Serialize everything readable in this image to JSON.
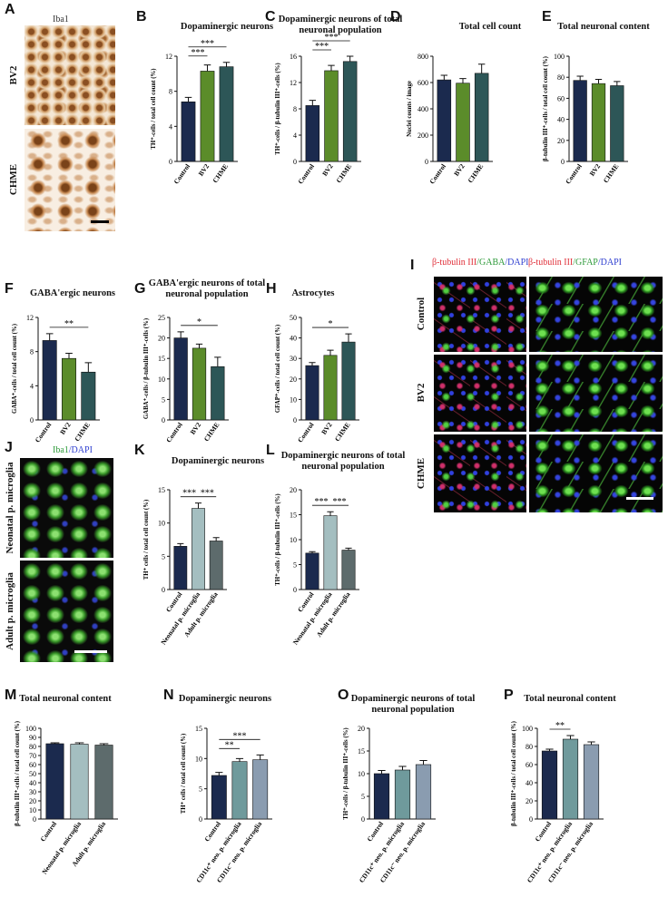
{
  "image_panels": [
    {
      "panel": "A",
      "header": [
        {
          "text": "Iba1",
          "color": "#333333"
        }
      ],
      "rows": [
        "BV2",
        "CHME"
      ]
    },
    {
      "panel": "I",
      "headers": [
        [
          {
            "text": "β-tubulin III",
            "color": "#e0303a"
          },
          {
            "text": "/GABA",
            "color": "#2e9a3a"
          },
          {
            "text": "/DAPI",
            "color": "#3040d0"
          }
        ],
        [
          {
            "text": "β-tubulin III",
            "color": "#e0303a"
          },
          {
            "text": "/GFAP",
            "color": "#2e9a3a"
          },
          {
            "text": "/DAPI",
            "color": "#3040d0"
          }
        ]
      ],
      "rows": [
        "Control",
        "BV2",
        "CHME"
      ]
    },
    {
      "panel": "J",
      "header": [
        {
          "text": "Iba1",
          "color": "#2e9a3a"
        },
        {
          "text": "/DAPI",
          "color": "#3040d0"
        }
      ],
      "rows": [
        "Neonatal p. microglia",
        "Adult p. microglia"
      ]
    }
  ],
  "chart_data": [
    {
      "type": "bar",
      "panel": "B",
      "title": "Dopaminergic neurons",
      "y_label": "TH⁺-cells / total cell count (%)",
      "categories": [
        "Control",
        "BV2",
        "CHME"
      ],
      "values": [
        6.8,
        10.3,
        10.8
      ],
      "errors": [
        0.5,
        0.7,
        0.5
      ],
      "colors": [
        "#1b2a4e",
        "#5b8c2a",
        "#2d5657"
      ],
      "ylim": [
        0,
        12
      ],
      "yticks": [
        0,
        4,
        8,
        12
      ],
      "brackets": [
        {
          "label": "***",
          "from": 0,
          "to": 1
        },
        {
          "label": "***",
          "from": 0,
          "to": 2
        }
      ]
    },
    {
      "type": "bar",
      "panel": "C",
      "title": "Dopaminergic neurons of total neuronal population",
      "y_label": "TH⁺-cells / β-tubulin III⁺-cells (%)",
      "categories": [
        "Control",
        "BV2",
        "CHME"
      ],
      "values": [
        8.5,
        13.8,
        15.2
      ],
      "errors": [
        0.8,
        0.8,
        0.8
      ],
      "colors": [
        "#1b2a4e",
        "#5b8c2a",
        "#2d5657"
      ],
      "ylim": [
        0,
        16
      ],
      "yticks": [
        0,
        4,
        8,
        12,
        16
      ],
      "brackets": [
        {
          "label": "***",
          "from": 0,
          "to": 1
        },
        {
          "label": "***",
          "from": 0,
          "to": 2
        }
      ]
    },
    {
      "type": "bar",
      "panel": "D",
      "title": "Total cell count",
      "y_label": "Nuclei counts / image",
      "categories": [
        "Control",
        "BV2",
        "CHME"
      ],
      "values": [
        620,
        595,
        670
      ],
      "errors": [
        35,
        35,
        70
      ],
      "colors": [
        "#1b2a4e",
        "#5b8c2a",
        "#2d5657"
      ],
      "ylim": [
        0,
        800
      ],
      "yticks": [
        0,
        200,
        400,
        600,
        800
      ],
      "brackets": []
    },
    {
      "type": "bar",
      "panel": "E",
      "title": "Total neuronal content",
      "y_label": "β-tubulin III⁺-cells / total cell count (%)",
      "categories": [
        "Control",
        "BV2",
        "CHME"
      ],
      "values": [
        77,
        74,
        72
      ],
      "errors": [
        4,
        4,
        4
      ],
      "colors": [
        "#1b2a4e",
        "#5b8c2a",
        "#2d5657"
      ],
      "ylim": [
        0,
        100
      ],
      "yticks": [
        0,
        20,
        40,
        60,
        80,
        100
      ],
      "brackets": []
    },
    {
      "type": "bar",
      "panel": "F",
      "title": "GABA'ergic neurons",
      "y_label": "GABA⁺-cells / total cell count (%)",
      "categories": [
        "Control",
        "BV2",
        "CHME"
      ],
      "values": [
        9.3,
        7.2,
        5.6
      ],
      "errors": [
        0.8,
        0.6,
        1.1
      ],
      "colors": [
        "#1b2a4e",
        "#5b8c2a",
        "#2d5657"
      ],
      "ylim": [
        0,
        12
      ],
      "yticks": [
        0,
        4,
        8,
        12
      ],
      "brackets": [
        {
          "label": "**",
          "from": 0,
          "to": 2
        }
      ]
    },
    {
      "type": "bar",
      "panel": "G",
      "title": "GABA'ergic neurons of total neuronal population",
      "y_label": "GABA⁺-cells / β-tubulin III⁺-cells (%)",
      "categories": [
        "Control",
        "BV2",
        "CHME"
      ],
      "values": [
        20,
        17.5,
        13
      ],
      "errors": [
        1.5,
        1,
        2.3
      ],
      "colors": [
        "#1b2a4e",
        "#5b8c2a",
        "#2d5657"
      ],
      "ylim": [
        0,
        25
      ],
      "yticks": [
        0,
        5,
        10,
        15,
        20,
        25
      ],
      "brackets": [
        {
          "label": "*",
          "from": 0,
          "to": 2
        }
      ]
    },
    {
      "type": "bar",
      "panel": "H",
      "title": "Astrocytes",
      "y_label": "GFAP⁺-cells / total cell count (%)",
      "categories": [
        "Control",
        "BV2",
        "CHME"
      ],
      "values": [
        26.5,
        31.5,
        38
      ],
      "errors": [
        1.5,
        2.5,
        4
      ],
      "colors": [
        "#1b2a4e",
        "#5b8c2a",
        "#2d5657"
      ],
      "ylim": [
        0,
        50
      ],
      "yticks": [
        0,
        10,
        20,
        30,
        40,
        50
      ],
      "brackets": [
        {
          "label": "*",
          "from": 0,
          "to": 2
        }
      ]
    },
    {
      "type": "bar",
      "panel": "K",
      "title": "Dopaminergic neurons",
      "y_label": "TH⁺ cells / total cell count (%)",
      "categories": [
        "Control",
        "Neonatal p. microglia",
        "Adult p. microglia"
      ],
      "values": [
        6.5,
        12.2,
        7.3
      ],
      "errors": [
        0.4,
        0.8,
        0.5
      ],
      "colors": [
        "#1b2a4e",
        "#a4bec0",
        "#5d6b6c"
      ],
      "ylim": [
        0,
        15
      ],
      "yticks": [
        0,
        5,
        10,
        15
      ],
      "brackets": [
        {
          "label": "***",
          "from": 0,
          "to": 1
        },
        {
          "label": "***",
          "from": 1,
          "to": 2
        }
      ]
    },
    {
      "type": "bar",
      "panel": "L",
      "title": "Dopaminergic neurons of total neuronal population",
      "y_label": "TH⁺-cells / β-tubulin III⁺-cells (%)",
      "categories": [
        "Control",
        "Neonatal p. microglia",
        "Adult p. microglia"
      ],
      "values": [
        7.3,
        14.8,
        7.9
      ],
      "errors": [
        0.3,
        0.8,
        0.4
      ],
      "colors": [
        "#1b2a4e",
        "#a4bec0",
        "#5d6b6c"
      ],
      "ylim": [
        0,
        20
      ],
      "yticks": [
        0,
        5,
        10,
        15,
        20
      ],
      "brackets": [
        {
          "label": "***",
          "from": 0,
          "to": 1
        },
        {
          "label": "***",
          "from": 1,
          "to": 2
        }
      ]
    },
    {
      "type": "bar",
      "panel": "M",
      "title": "Total neuronal content",
      "y_label": "β-tubulin III⁺-cells / total cell count (%)",
      "categories": [
        "Control",
        "Neonatal p. microglia",
        "Adult p. microglia"
      ],
      "values": [
        83,
        82.5,
        81.5
      ],
      "errors": [
        1,
        1.5,
        1.5
      ],
      "colors": [
        "#1b2a4e",
        "#a4bec0",
        "#5d6b6c"
      ],
      "ylim": [
        0,
        100
      ],
      "yticks": [
        0,
        10,
        20,
        30,
        40,
        50,
        60,
        70,
        80,
        90,
        100
      ],
      "brackets": []
    },
    {
      "type": "bar",
      "panel": "N",
      "title": "Dopaminergic neurons",
      "y_label": "TH⁺ cells / total cell count (%)",
      "categories": [
        "Control",
        "CD11c⁺ neo. p. microglia",
        "CD11c⁻ neo. p. microglia"
      ],
      "values": [
        7.2,
        9.5,
        9.8
      ],
      "errors": [
        0.5,
        0.5,
        0.8
      ],
      "colors": [
        "#1b2a4e",
        "#6f9a9c",
        "#8a9cb0"
      ],
      "ylim": [
        0,
        15
      ],
      "yticks": [
        0,
        5,
        10,
        15
      ],
      "brackets": [
        {
          "label": "**",
          "from": 0,
          "to": 1
        },
        {
          "label": "***",
          "from": 0,
          "to": 2
        }
      ]
    },
    {
      "type": "bar",
      "panel": "O",
      "title": "Dopaminergic neurons of total neuronal population",
      "y_label": "TH⁺-cells / β-tubulin III⁺-cells (%)",
      "categories": [
        "Control",
        "CD11c⁺ neo. p. microglia",
        "CD11c⁻ neo. p. microglia"
      ],
      "values": [
        10,
        10.8,
        12
      ],
      "errors": [
        0.7,
        0.8,
        0.9
      ],
      "colors": [
        "#1b2a4e",
        "#6f9a9c",
        "#8a9cb0"
      ],
      "ylim": [
        0,
        20
      ],
      "yticks": [
        0,
        5,
        10,
        15,
        20
      ],
      "brackets": []
    },
    {
      "type": "bar",
      "panel": "P",
      "title": "Total neuronal content",
      "y_label": "β-tubulin III⁺-cells / total cell count (%)",
      "categories": [
        "Control",
        "CD11c⁺ neo. p. microglia",
        "CD11c⁻ neo. p. microglia"
      ],
      "values": [
        75,
        88,
        82
      ],
      "errors": [
        2,
        4,
        3
      ],
      "colors": [
        "#1b2a4e",
        "#6f9a9c",
        "#8a9cb0"
      ],
      "ylim": [
        0,
        100
      ],
      "yticks": [
        0,
        20,
        40,
        60,
        80,
        100
      ],
      "brackets": [
        {
          "label": "**",
          "from": 0,
          "to": 1
        }
      ]
    }
  ]
}
